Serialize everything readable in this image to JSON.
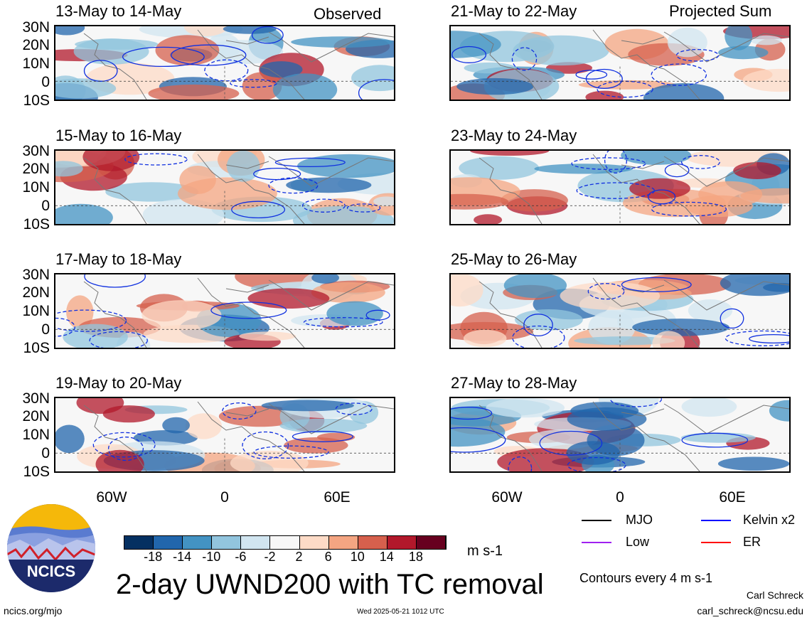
{
  "panels_left": [
    {
      "title": "13-May to 14-May",
      "tag": "Observed"
    },
    {
      "title": "15-May to 16-May",
      "tag": ""
    },
    {
      "title": "17-May to 18-May",
      "tag": ""
    },
    {
      "title": "19-May to 20-May",
      "tag": ""
    }
  ],
  "panels_right": [
    {
      "title": "21-May to 22-May",
      "tag": "Projected Sum"
    },
    {
      "title": "23-May to 24-May",
      "tag": ""
    },
    {
      "title": "25-May to 26-May",
      "tag": ""
    },
    {
      "title": "27-May to 28-May",
      "tag": ""
    }
  ],
  "lat_labels": [
    "30N",
    "20N",
    "10N",
    "0",
    "10S"
  ],
  "lon_labels": [
    "60W",
    "0",
    "60E"
  ],
  "colorbar": {
    "ticks": [
      "-18",
      "-14",
      "-10",
      "-6",
      "-2",
      "2",
      "6",
      "10",
      "14",
      "18"
    ],
    "unit": "m s-1",
    "colors": [
      "#053061",
      "#2166ac",
      "#4393c3",
      "#92c5de",
      "#d1e5f0",
      "#f7f7f7",
      "#fddbc7",
      "#f4a582",
      "#d6604d",
      "#b2182b",
      "#67001f"
    ]
  },
  "legend": {
    "items": [
      {
        "label": "MJO",
        "color": "#000000"
      },
      {
        "label": "Kelvin x2",
        "color": "#0000ff"
      },
      {
        "label": "Low",
        "color": "#a020f0"
      },
      {
        "label": "ER",
        "color": "#ff0000"
      }
    ],
    "contours_note": "Contours every 4 m s-1"
  },
  "main_title": "2-day UWND200 with TC removal",
  "logo_text": "NCICS",
  "footer": {
    "left": "ncics.org/mjo",
    "center": "Wed 2025-05-21 1012 UTC",
    "author": "Carl Schreck",
    "email": "carl_schreck@ncsu.edu"
  }
}
